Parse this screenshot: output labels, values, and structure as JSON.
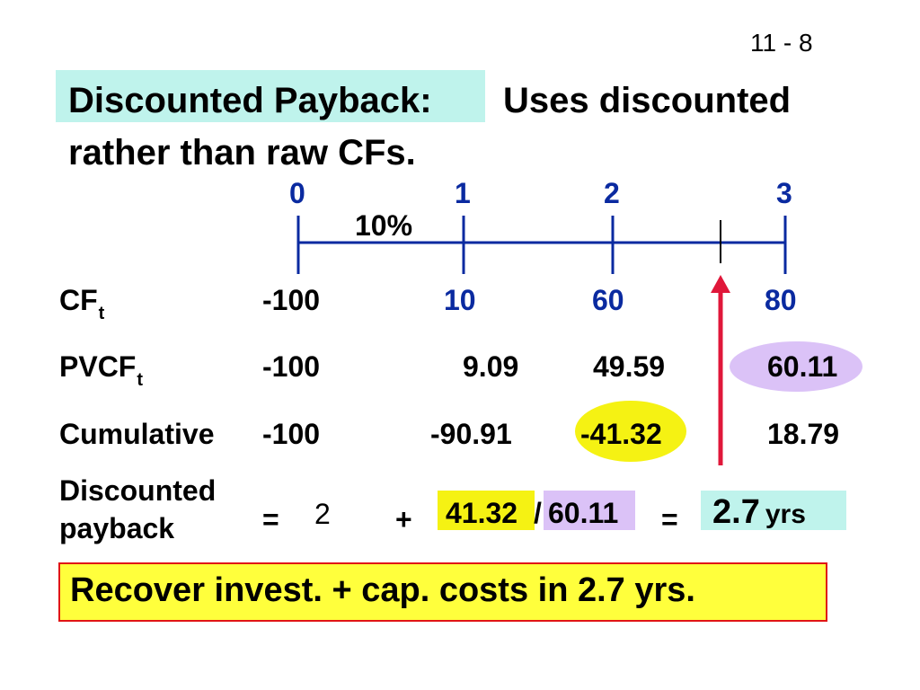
{
  "slide_number": "11 - 8",
  "title": {
    "highlight": "Discounted Payback:",
    "rest": "Uses discounted",
    "line2": "rather than raw CFs."
  },
  "timeline": {
    "periods": [
      "0",
      "1",
      "2",
      "3"
    ],
    "rate": "10%"
  },
  "rows": {
    "cf": {
      "label": "CF",
      "sub": "t",
      "values": [
        "-100",
        "10",
        "60",
        "80"
      ]
    },
    "pvcf": {
      "label": "PVCF",
      "sub": "t",
      "values": [
        "-100",
        "9.09",
        "49.59",
        "60.11"
      ]
    },
    "cumulative": {
      "label": "Cumulative",
      "values": [
        "-100",
        "-90.91",
        "-41.32",
        "18.79"
      ]
    }
  },
  "payback": {
    "label_line1": "Discounted",
    "label_line2": "payback",
    "eq1": "=",
    "years": "2",
    "plus": "+",
    "numerator": "41.32",
    "slash": "/",
    "denominator": "60.11",
    "eq2": "=",
    "result_value": "2.7",
    "result_unit": "yrs"
  },
  "conclusion": "Recover invest. + cap. costs in 2.7 yrs.",
  "colors": {
    "blue": "#0a2aa0",
    "cyan_highlight": "#bff3ec",
    "yellow_highlight": "#f5f213",
    "purple_highlight": "#dbc2f7",
    "arrow_red": "#e0173a",
    "border_red": "#e01515"
  }
}
